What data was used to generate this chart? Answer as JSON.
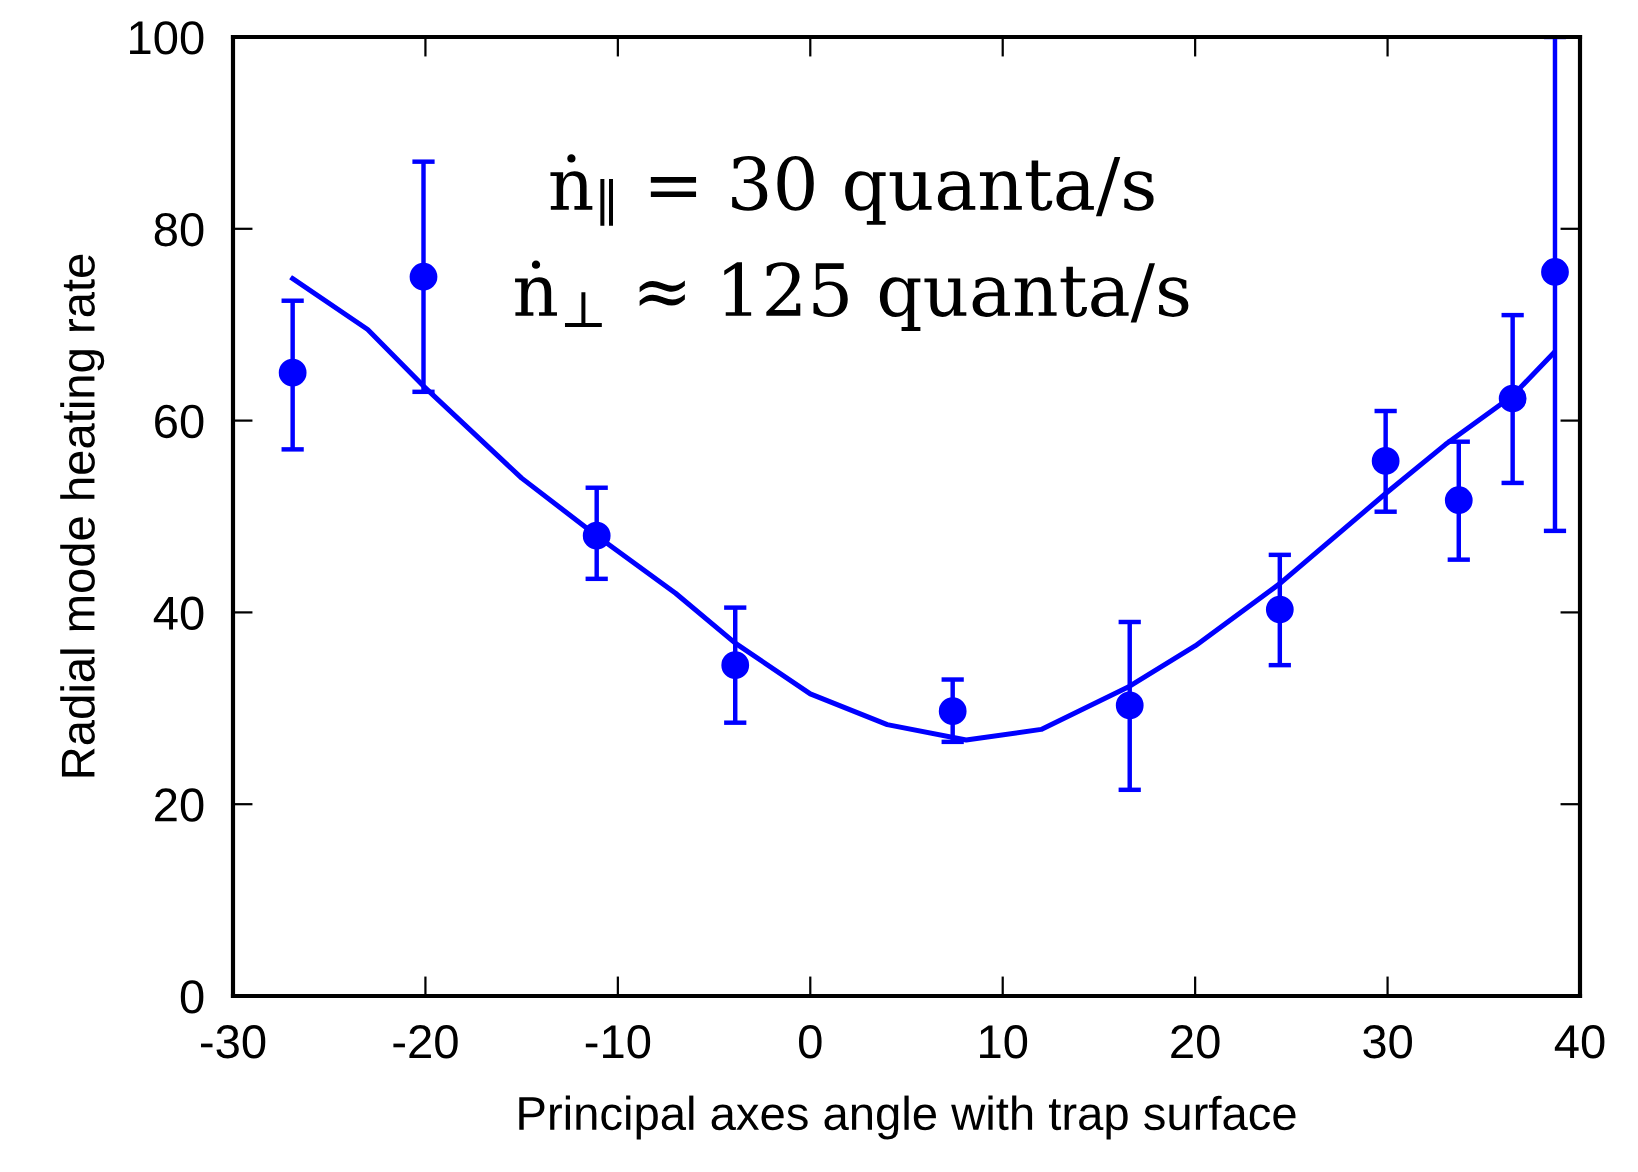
{
  "chart_data": {
    "type": "scatter",
    "xlabel": "Principal axes angle with trap surface",
    "ylabel": "Radial mode heating rate",
    "xlim": [
      -30,
      40
    ],
    "xticks": [
      -30,
      -20,
      -10,
      0,
      10,
      20,
      30,
      40
    ],
    "ylim": [
      0,
      100
    ],
    "yticks": [
      0,
      20,
      40,
      60,
      80,
      100
    ],
    "grid": false,
    "annotations": [
      "ṅ$_{∥}$ = 30 quanta/s",
      "ṅ$_{⊥}$ ≈ 125 quanta/s"
    ],
    "series": [
      {
        "color": "#0000ff",
        "marker": "circle",
        "x": [
          -26.9,
          -20.1,
          -11.1,
          -3.9,
          7.4,
          16.6,
          24.4,
          29.9,
          33.7,
          36.5,
          38.7
        ],
        "values": [
          65,
          75,
          48,
          34.5,
          29.7,
          30.3,
          40.3,
          55.8,
          51.7,
          62.3,
          75.5
        ],
        "errors": [
          [
            57,
            72.5
          ],
          [
            63,
            87
          ],
          [
            43.5,
            53
          ],
          [
            28.5,
            40.5
          ],
          [
            26.5,
            33
          ],
          [
            21.5,
            39
          ],
          [
            34.5,
            46
          ],
          [
            50.5,
            61
          ],
          [
            45.5,
            57.8
          ],
          [
            53.5,
            71
          ],
          [
            48.5,
            100
          ]
        ]
      },
      {
        "type": "line",
        "color": "#0000ff",
        "marker": "none",
        "line_style": "solid",
        "x": [
          -26.9,
          -23,
          -20.1,
          -15,
          -11.1,
          -7,
          -3.9,
          0,
          4,
          8.1,
          12,
          16.6,
          20,
          24.4,
          29.9,
          33,
          36.5,
          38.6
        ],
        "values": [
          74.8,
          69.5,
          63.6,
          54,
          48,
          42,
          36.8,
          31.5,
          28.3,
          26.7,
          27.8,
          32.3,
          36.5,
          43,
          52.4,
          57.5,
          62.6,
          67
        ]
      }
    ]
  }
}
